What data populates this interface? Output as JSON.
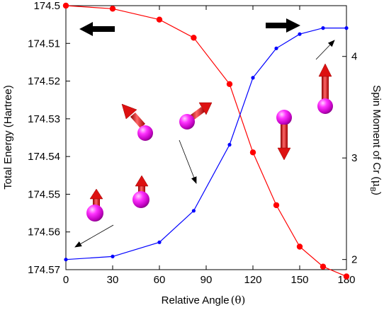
{
  "chart_data": {
    "type": "line",
    "xlabel": "Relative Angle",
    "xlabel_symbol": "θ",
    "ylabel_left": "Total Energy (Hartree)",
    "ylabel_right_prefix": "Spin Moment of Cr (",
    "ylabel_right_symbol": "μ",
    "ylabel_right_sub": "B",
    "ylabel_right_suffix": ")",
    "xlim": [
      0,
      180
    ],
    "ylim_left": [
      174.5,
      174.57
    ],
    "ylim_left_direction": "downward-increasing",
    "ylim_right": [
      1.9,
      4.5
    ],
    "x_ticks": [
      0,
      30,
      60,
      90,
      120,
      150,
      180
    ],
    "x_tick_labels": [
      "0",
      "30",
      "60",
      "90",
      "120",
      "150",
      "180"
    ],
    "y_left_ticks": [
      174.5,
      174.51,
      174.52,
      174.53,
      174.54,
      174.55,
      174.56,
      174.57
    ],
    "y_left_tick_labels": [
      "174.5",
      "174.51",
      "174.52",
      "174.53",
      "174.54",
      "174.55",
      "174.56",
      "174.57"
    ],
    "y_right_ticks": [
      2,
      3,
      4
    ],
    "y_right_tick_labels": [
      "2",
      "3",
      "4"
    ],
    "grid": false,
    "series": [
      {
        "axis": "left",
        "color": "#ff0000",
        "marker": "circle",
        "x": [
          0,
          30,
          60,
          82,
          105,
          120,
          135,
          150,
          165,
          180
        ],
        "values": [
          174.5,
          174.5008,
          174.5037,
          174.5085,
          174.5208,
          174.5389,
          174.5529,
          174.5639,
          174.5692,
          174.5718
        ]
      },
      {
        "axis": "right",
        "color": "#0000ff",
        "marker": "dot",
        "x": [
          0,
          30,
          60,
          82,
          105,
          120,
          135,
          150,
          165,
          180
        ],
        "values": [
          2.0,
          2.03,
          2.17,
          2.48,
          3.13,
          3.79,
          4.08,
          4.22,
          4.28,
          4.28
        ]
      }
    ],
    "annotations": [
      {
        "type": "arrow",
        "description": "black arrow pointing left (energy curve uses left axis)",
        "color": "#000000"
      },
      {
        "type": "arrow",
        "description": "black arrow pointing right (spin curve uses right axis)",
        "color": "#000000"
      }
    ],
    "spin_illustrations": [
      {
        "name": "spin-pair-0deg",
        "angle_deg": 0
      },
      {
        "name": "spin-pair-45deg",
        "angle_deg": 45
      },
      {
        "name": "spin-pair-135deg",
        "angle_deg": 135
      },
      {
        "name": "spin-pair-180deg",
        "angle_deg": 180
      }
    ],
    "colors": {
      "sphere": "#cc00cc",
      "spin_arrow": "#dd0000"
    }
  }
}
